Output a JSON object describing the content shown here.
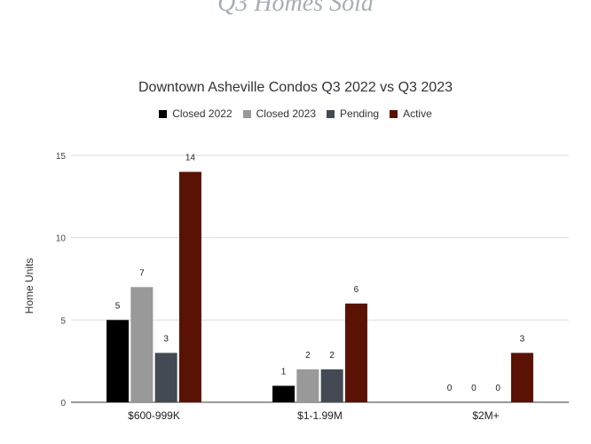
{
  "page": {
    "heading": "Q3 Homes Sold"
  },
  "chart_data": {
    "type": "bar",
    "title": "Downtown Asheville Condos Q3 2022 vs Q3 2023",
    "xlabel": "",
    "ylabel": "Home Units",
    "categories": [
      "$600-999K",
      "$1-1.99M",
      "$2M+"
    ],
    "series": [
      {
        "name": "Closed  2022",
        "color": "#000000",
        "values": [
          5,
          1,
          0
        ]
      },
      {
        "name": "Closed  2023",
        "color": "#999999",
        "values": [
          7,
          2,
          0
        ]
      },
      {
        "name": "Pending",
        "color": "#434a54",
        "values": [
          3,
          2,
          0
        ]
      },
      {
        "name": "Active",
        "color": "#5a1204",
        "values": [
          14,
          6,
          3
        ]
      }
    ],
    "ylim": [
      0,
      15
    ],
    "yticks": [
      0,
      5,
      10,
      15
    ],
    "grid": true,
    "legend_position": "top-center",
    "data_labels": true
  }
}
